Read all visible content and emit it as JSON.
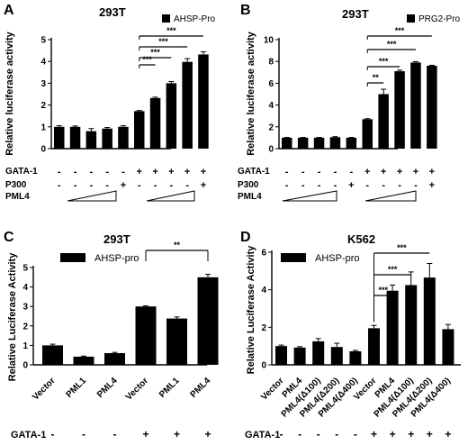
{
  "panels": [
    {
      "letter": "A",
      "cell_line": "293T",
      "ylabel": "Relative luciferase activity",
      "legend": "AHSP-Pro",
      "ticks": [
        "0",
        "1",
        "2",
        "3",
        "4",
        "5"
      ],
      "row_labels": [
        "GATA-1",
        "P300",
        "PML4"
      ],
      "gata1": [
        "-",
        "-",
        "-",
        "-",
        "-",
        "+",
        "+",
        "+",
        "+",
        "+"
      ],
      "p300": [
        "-",
        "-",
        "-",
        "-",
        "+",
        "-",
        "-",
        "-",
        "-",
        "+"
      ],
      "significance": [
        "***",
        "***",
        "***",
        "***"
      ]
    },
    {
      "letter": "B",
      "cell_line": "293T",
      "ylabel": "Relative luciferase activity",
      "legend": "PRG2-Pro",
      "ticks": [
        "0",
        "2",
        "4",
        "6",
        "8",
        "10"
      ],
      "row_labels": [
        "GATA-1",
        "P300",
        "PML4"
      ],
      "gata1": [
        "-",
        "-",
        "-",
        "-",
        "-",
        "+",
        "+",
        "+",
        "+",
        "+"
      ],
      "p300": [
        "-",
        "-",
        "-",
        "-",
        "+",
        "-",
        "-",
        "-",
        "-",
        "+"
      ],
      "significance": [
        "**",
        "***",
        "***",
        "***"
      ]
    },
    {
      "letter": "C",
      "cell_line": "293T",
      "ylabel": "Relative Luciferase Activity",
      "legend": "AHSP-pro",
      "ticks": [
        "0",
        "1",
        "2",
        "3",
        "4",
        "5"
      ],
      "row_labels": [
        "GATA-1"
      ],
      "gata1": [
        "-",
        "-",
        "-",
        "+",
        "+",
        "+"
      ],
      "significance": [
        "**"
      ]
    },
    {
      "letter": "D",
      "cell_line": "K562",
      "ylabel": "Relative Luciferase Activity",
      "legend": "AHSP-pro",
      "ticks": [
        "0",
        "2",
        "4",
        "6"
      ],
      "row_labels": [
        "GATA-1"
      ],
      "gata1": [
        "-",
        "-",
        "-",
        "-",
        "-",
        "+",
        "+",
        "+",
        "+",
        "+"
      ],
      "significance": [
        "***",
        "***",
        "***"
      ]
    }
  ],
  "chart_data": [
    {
      "type": "bar",
      "panel": "A",
      "title": "293T",
      "ylabel": "Relative luciferase activity",
      "ylim": [
        0,
        5
      ],
      "series": [
        {
          "name": "AHSP-Pro",
          "values": [
            1.0,
            1.0,
            0.8,
            0.92,
            1.0,
            1.72,
            2.32,
            3.0,
            3.98,
            4.32
          ],
          "errors": [
            0.05,
            0.04,
            0.12,
            0.05,
            0.05,
            0.03,
            0.04,
            0.08,
            0.15,
            0.12
          ]
        }
      ],
      "color": "#000000"
    },
    {
      "type": "bar",
      "panel": "B",
      "title": "293T",
      "ylabel": "Relative luciferase activity",
      "ylim": [
        0,
        10
      ],
      "series": [
        {
          "name": "PRG2-Pro",
          "values": [
            1.0,
            1.0,
            1.0,
            1.05,
            1.0,
            2.7,
            5.0,
            7.1,
            7.9,
            7.6
          ],
          "errors": [
            0.03,
            0.03,
            0.03,
            0.05,
            0.03,
            0.05,
            0.45,
            0.1,
            0.08,
            0.05
          ]
        }
      ],
      "color": "#000000"
    },
    {
      "type": "bar",
      "panel": "C",
      "title": "293T",
      "ylabel": "Relative Luciferase Activity",
      "ylim": [
        0,
        5
      ],
      "categories": [
        "Vector",
        "PML1",
        "PML4",
        "Vector",
        "PML1",
        "PML4"
      ],
      "series": [
        {
          "name": "AHSP-pro",
          "values": [
            1.0,
            0.42,
            0.6,
            3.0,
            2.38,
            4.5
          ],
          "errors": [
            0.06,
            0.03,
            0.04,
            0.03,
            0.08,
            0.15
          ]
        }
      ],
      "color": "#000000"
    },
    {
      "type": "bar",
      "panel": "D",
      "title": "K562",
      "ylabel": "Relative Luciferase Activity",
      "ylim": [
        0,
        6
      ],
      "categories": [
        "Vector",
        "PML4",
        "PML4(Δ100)",
        "PML4(Δ200)",
        "PML4(Δ400)",
        "Vector",
        "PML4",
        "PML4(Δ100)",
        "PML4(Δ200)",
        "PML4(Δ400)"
      ],
      "series": [
        {
          "name": "AHSP-pro",
          "values": [
            1.0,
            0.92,
            1.25,
            0.95,
            0.72,
            1.95,
            3.95,
            4.25,
            4.65,
            1.9
          ],
          "errors": [
            0.05,
            0.05,
            0.15,
            0.2,
            0.05,
            0.15,
            0.3,
            0.7,
            0.75,
            0.25
          ]
        }
      ],
      "color": "#000000"
    }
  ]
}
